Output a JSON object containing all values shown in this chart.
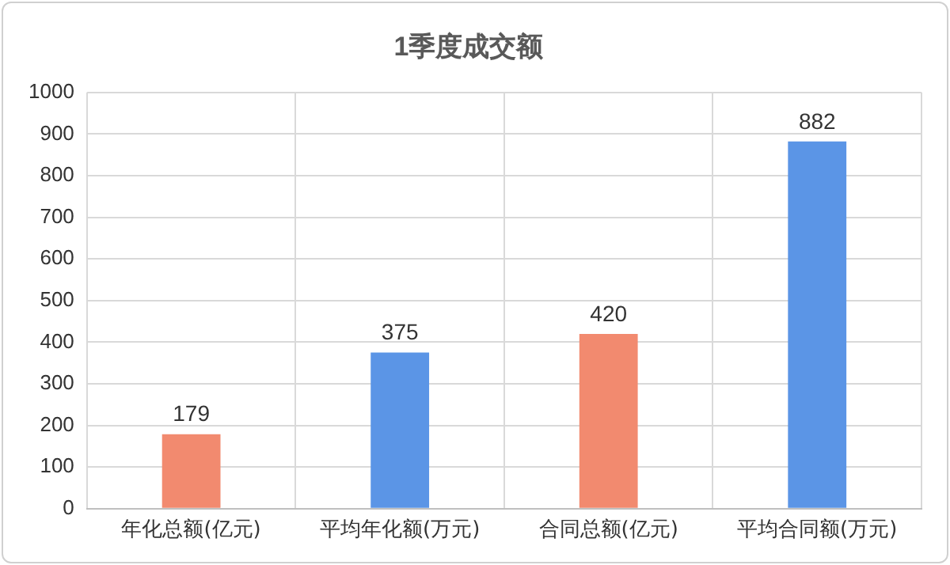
{
  "chart_data": {
    "type": "bar",
    "title": "1季度成交额",
    "categories": [
      "年化总额(亿元)",
      "平均年化额(万元)",
      "合同总额(亿元)",
      "平均合同额(万元)"
    ],
    "values": [
      179,
      375,
      420,
      882
    ],
    "colors": [
      "#f28a6f",
      "#5b95e6",
      "#f28a6f",
      "#5b95e6"
    ],
    "ylim": [
      0,
      1000
    ],
    "yticks": [
      0,
      100,
      200,
      300,
      400,
      500,
      600,
      700,
      800,
      900,
      1000
    ],
    "grid": true,
    "data_labels": true,
    "legend": false
  }
}
